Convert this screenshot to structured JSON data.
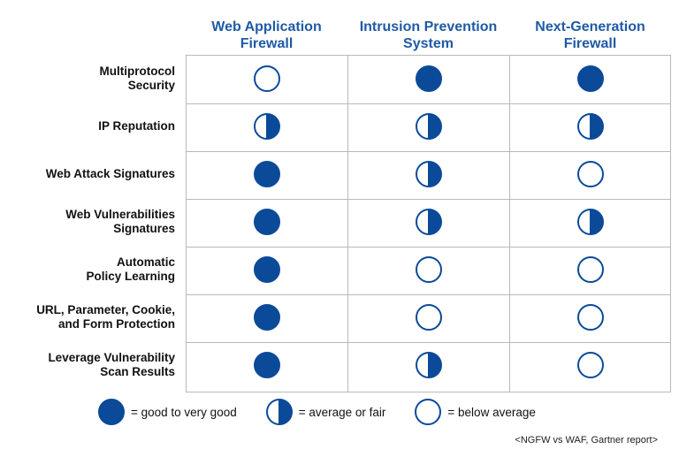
{
  "columns": [
    {
      "line1": "Web Application",
      "line2": "Firewall"
    },
    {
      "line1": "Intrusion Prevention",
      "line2": "System"
    },
    {
      "line1": "Next-Generation",
      "line2": "Firewall"
    }
  ],
  "rows": [
    {
      "line1": "Multiprotocol",
      "line2": "Security",
      "ratings": [
        "below-average",
        "good",
        "good"
      ]
    },
    {
      "line1": "IP Reputation",
      "line2": "",
      "ratings": [
        "average",
        "average",
        "average"
      ]
    },
    {
      "line1": "Web Attack Signatures",
      "line2": "",
      "ratings": [
        "good",
        "average",
        "below-average"
      ]
    },
    {
      "line1": "Web Vulnerabilities",
      "line2": "Signatures",
      "ratings": [
        "good",
        "average",
        "average"
      ]
    },
    {
      "line1": "Automatic",
      "line2": "Policy Learning",
      "ratings": [
        "good",
        "below-average",
        "below-average"
      ]
    },
    {
      "line1": "URL, Parameter, Cookie,",
      "line2": "and Form Protection",
      "ratings": [
        "good",
        "below-average",
        "below-average"
      ]
    },
    {
      "line1": "Leverage Vulnerability",
      "line2": "Scan Results",
      "ratings": [
        "good",
        "average",
        "below-average"
      ]
    }
  ],
  "legend": [
    {
      "rating": "good",
      "label": "= good to very good"
    },
    {
      "rating": "average",
      "label": "= average or fair"
    },
    {
      "rating": "below-average",
      "label": "= below average"
    }
  ],
  "source": "<NGFW vs WAF, Gartner report>",
  "colors": {
    "accent": "#0b4a99",
    "header": "#1f5aa6",
    "grid": "#b9b9b9"
  },
  "icon_names": {
    "good": "filled-circle-icon",
    "average": "half-filled-circle-icon",
    "below-average": "empty-circle-icon"
  }
}
